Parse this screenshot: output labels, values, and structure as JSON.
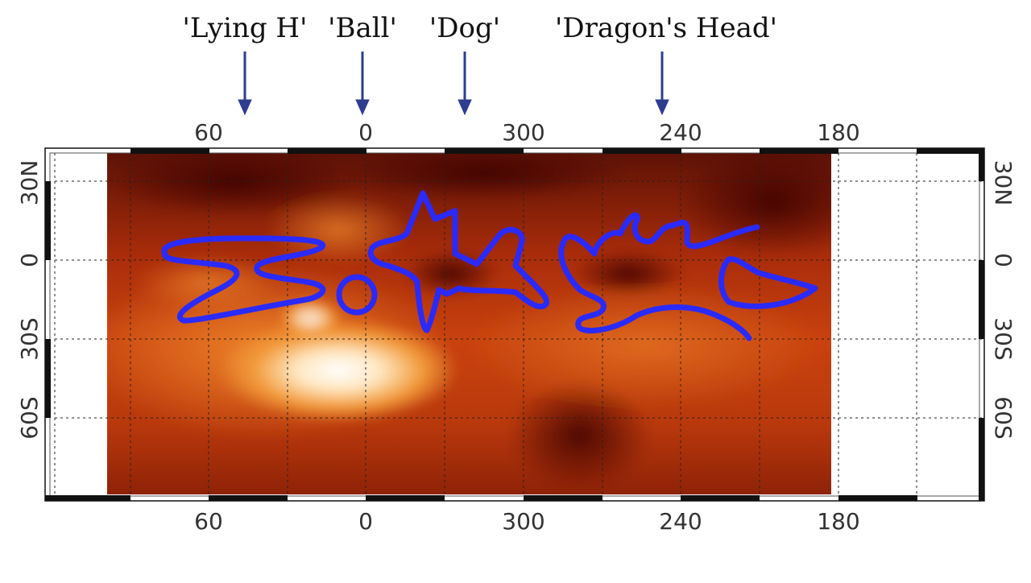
{
  "features": [
    {
      "label": "'Lying H'"
    },
    {
      "label": "'Ball'"
    },
    {
      "label": "'Dog'"
    },
    {
      "label": "'Dragon's Head'"
    }
  ],
  "longitude_ticks": [
    "60",
    "0",
    "300",
    "240",
    "180"
  ],
  "latitude_ticks_left": [
    "30N",
    "0",
    "30S",
    "60S"
  ],
  "latitude_ticks_right": [
    "30N",
    "0",
    "30S",
    "60S"
  ],
  "colors": {
    "outline": "#2a2aff",
    "arrow": "#2e3d8f",
    "map_dark": "#5a0f05",
    "map_mid": "#c0390a",
    "map_bright": "#fff6ea"
  },
  "legend_icons": [
    "arrow-icon"
  ]
}
